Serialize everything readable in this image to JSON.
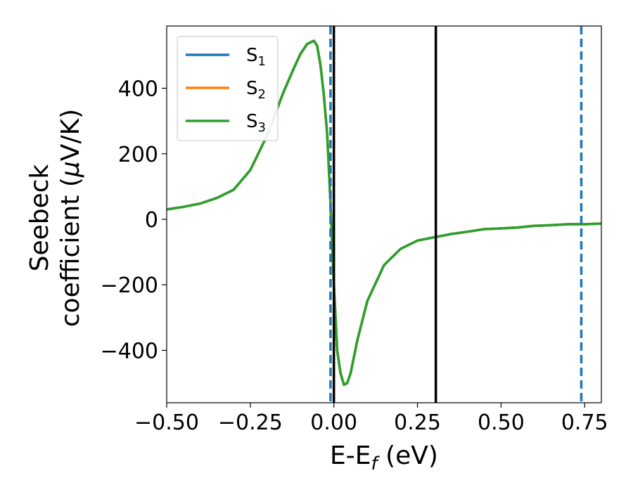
{
  "chart_data": {
    "type": "line",
    "xlabel_main": "E-E",
    "xlabel_sub": "f",
    "xlabel_tail": " (eV)",
    "ylabel_line1": "Seebeck",
    "ylabel_line2_pre": "coefficient  (",
    "ylabel_mu": "μ",
    "ylabel_line2_post": "V/K)",
    "xlim": [
      -0.5,
      0.8
    ],
    "ylim": [
      -560,
      590
    ],
    "x_ticks": [
      -0.5,
      -0.25,
      0.0,
      0.25,
      0.5,
      0.75
    ],
    "x_tick_labels": [
      "−0.50",
      "−0.25",
      "0.00",
      "0.25",
      "0.50",
      "0.75"
    ],
    "y_ticks": [
      -400,
      -200,
      0,
      200,
      400
    ],
    "y_tick_labels": [
      "−400",
      "−200",
      "0",
      "200",
      "400"
    ],
    "grid": false,
    "legend": {
      "placement": "top-left",
      "entries": [
        {
          "base": "S",
          "sub": "1",
          "color": "#1f77b4"
        },
        {
          "base": "S",
          "sub": "2",
          "color": "#ff7f0e"
        },
        {
          "base": "S",
          "sub": "3",
          "color": "#2ca02c"
        }
      ]
    },
    "vlines": [
      {
        "x": -0.01,
        "style": "dashed",
        "color": "#1f77b4"
      },
      {
        "x": 0.0,
        "style": "solid",
        "color": "#000000"
      },
      {
        "x": 0.305,
        "style": "solid",
        "color": "#000000"
      },
      {
        "x": 0.74,
        "style": "dashed",
        "color": "#1f77b4"
      }
    ],
    "curve": {
      "x": [
        -0.5,
        -0.45,
        -0.4,
        -0.35,
        -0.3,
        -0.25,
        -0.2,
        -0.15,
        -0.12,
        -0.1,
        -0.08,
        -0.06,
        -0.05,
        -0.04,
        -0.03,
        -0.02,
        -0.01,
        0.0,
        0.01,
        0.02,
        0.03,
        0.04,
        0.05,
        0.07,
        0.1,
        0.15,
        0.2,
        0.25,
        0.3,
        0.35,
        0.4,
        0.45,
        0.5,
        0.55,
        0.6,
        0.65,
        0.7,
        0.75,
        0.8
      ],
      "y": [
        30,
        38,
        48,
        65,
        90,
        150,
        255,
        390,
        460,
        505,
        535,
        545,
        530,
        470,
        380,
        260,
        50,
        -200,
        -400,
        -470,
        -505,
        -500,
        -470,
        -370,
        -250,
        -140,
        -90,
        -65,
        -55,
        -45,
        -38,
        -30,
        -28,
        -25,
        -20,
        -18,
        -15,
        -15,
        -13
      ],
      "series_colors": [
        "#1f77b4",
        "#ff7f0e",
        "#2ca02c"
      ]
    }
  }
}
